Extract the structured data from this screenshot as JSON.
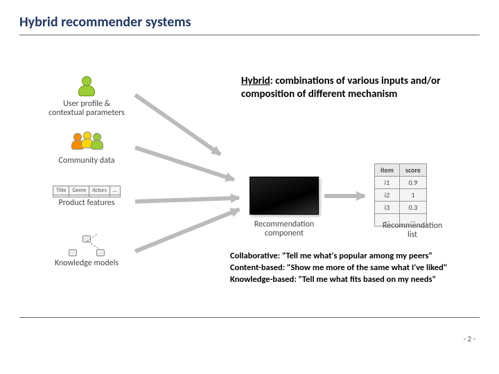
{
  "title": "Hybrid recommender systems",
  "hybrid_desc": "<u>Hybrid</u>: combinations of various inputs and/or composition of different mechanism",
  "methods_html": "Collaborative: \"Tell me what's popular among my peers\"<br>Content-based: \"Show me more of the same what I've liked\"<br>Knowledge-based: \"Tell me what fits based on my needs\"",
  "page_number": "- 2 -",
  "inputs": {
    "user": {
      "label": "User profile &\ncontextual parameters"
    },
    "community": {
      "label": "Community data"
    },
    "product": {
      "label": "Product features",
      "cols": [
        "Title",
        "Genre",
        "Actors",
        "..."
      ]
    },
    "knowledge": {
      "label": "Knowledge models"
    }
  },
  "component_label": "Recommendation\ncomponent",
  "output": {
    "label": "Recommendation\nlist",
    "headers": [
      "item",
      "score"
    ],
    "rows": [
      [
        "i1",
        "0.9"
      ],
      [
        "i2",
        "1"
      ],
      [
        "i3",
        "0.3"
      ],
      [
        "...",
        "..."
      ]
    ]
  },
  "colors": {
    "title": "#1f3864",
    "rule": "#666666",
    "text": "#000000",
    "diagram_label": "#444444",
    "arrow": "#bbbbbb",
    "box": "#000000",
    "user_green": "#9acd32",
    "user_orange": "#ff8c00",
    "user_yellow": "#ffd700"
  }
}
